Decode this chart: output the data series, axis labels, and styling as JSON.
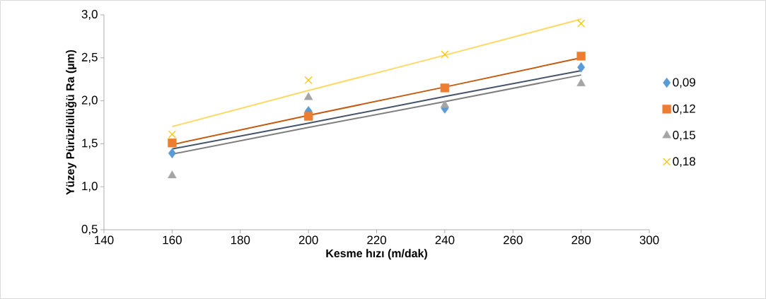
{
  "chart_data": {
    "type": "scatter",
    "xlabel": "Kesme hızı  (m/dak)",
    "ylabel": "Yüzey Pürüzlülüğü   Ra (µm)",
    "x": [
      160,
      200,
      240,
      280
    ],
    "series": [
      {
        "name": "0,09",
        "color": "#5b9bd5",
        "marker": "diamond",
        "values": [
          1.39,
          1.88,
          1.91,
          2.39
        ]
      },
      {
        "name": "0,12",
        "color": "#ed7d31",
        "marker": "square",
        "values": [
          1.51,
          1.82,
          2.15,
          2.52
        ]
      },
      {
        "name": "0,15",
        "color": "#a5a5a5",
        "marker": "triangle",
        "values": [
          1.13,
          2.04,
          1.95,
          2.2
        ]
      },
      {
        "name": "0,18",
        "color": "#ffc000",
        "marker": "cross",
        "values": [
          1.61,
          2.24,
          2.54,
          2.9
        ]
      },
      {
        "type": "line",
        "color": "#44546a",
        "values": [
          1.44,
          1.74,
          2.05,
          2.35
        ]
      },
      {
        "type": "line",
        "color": "#c55a11",
        "values": [
          1.49,
          1.83,
          2.16,
          2.5
        ]
      },
      {
        "type": "line",
        "color": "#7f7f7f",
        "values": [
          1.38,
          1.69,
          1.99,
          2.3
        ]
      },
      {
        "type": "line",
        "color": "#ffd966",
        "values": [
          1.7,
          2.12,
          2.53,
          2.95
        ]
      }
    ],
    "xlim": [
      140,
      300
    ],
    "xticks": [
      140,
      160,
      180,
      200,
      220,
      240,
      260,
      280,
      300
    ],
    "ylim": [
      0.5,
      3.0
    ],
    "yticks": [
      {
        "value": 0.5,
        "label": "0,5"
      },
      {
        "value": 1.0,
        "label": "1,0"
      },
      {
        "value": 1.5,
        "label": "1,5"
      },
      {
        "value": 2.0,
        "label": "2,0"
      },
      {
        "value": 2.5,
        "label": "2,5"
      },
      {
        "value": 3.0,
        "label": "3,0"
      }
    ],
    "grid": false,
    "legend": "right"
  }
}
